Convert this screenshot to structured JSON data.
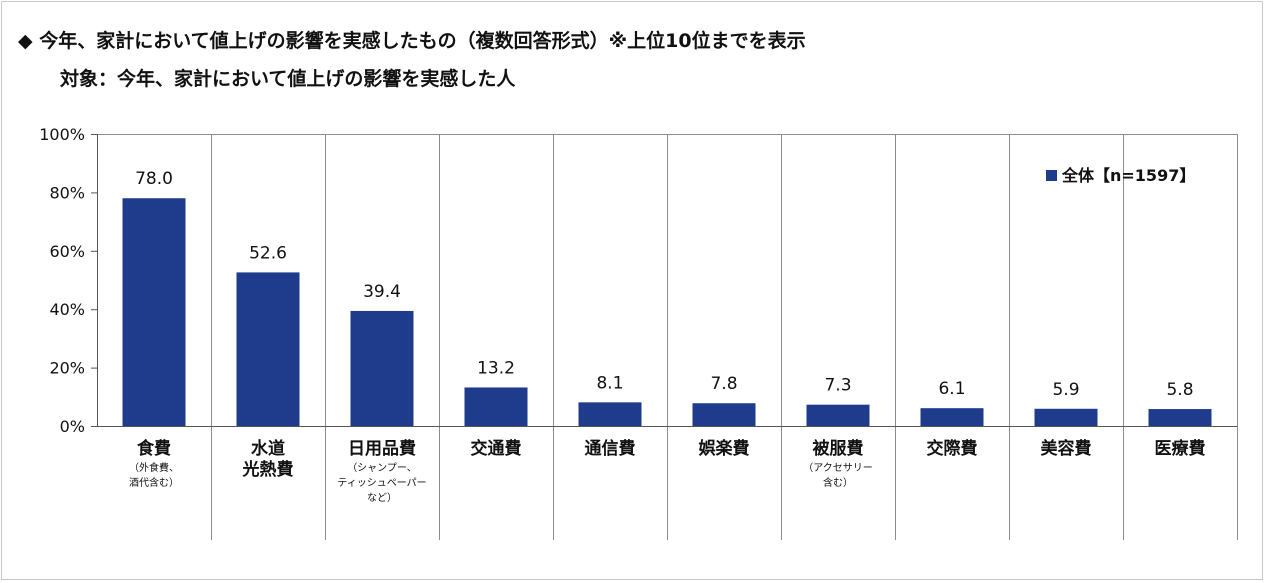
{
  "header": {
    "title": "◆ 今年、家計において値上げの影響を実感したもの（複数回答形式）※上位10位までを表示",
    "subtitle": "対象：今年、家計において値上げの影響を実感した人"
  },
  "chart_data": {
    "type": "bar",
    "categories": [
      {
        "lines": [
          "食費"
        ],
        "note": [
          "（外食費、",
          "酒代含む）"
        ]
      },
      {
        "lines": [
          "水道",
          "光熱費"
        ],
        "note": []
      },
      {
        "lines": [
          "日用品費"
        ],
        "note": [
          "（シャンプー、",
          "ティッシュペーパー",
          "など）"
        ]
      },
      {
        "lines": [
          "交通費"
        ],
        "note": []
      },
      {
        "lines": [
          "通信費"
        ],
        "note": []
      },
      {
        "lines": [
          "娯楽費"
        ],
        "note": []
      },
      {
        "lines": [
          "被服費"
        ],
        "note": [
          "（アクセサリー",
          "含む）"
        ]
      },
      {
        "lines": [
          "交際費"
        ],
        "note": []
      },
      {
        "lines": [
          "美容費"
        ],
        "note": []
      },
      {
        "lines": [
          "医療費"
        ],
        "note": []
      }
    ],
    "series": [
      {
        "name": "全体【n=1597】",
        "values": [
          78.0,
          52.6,
          39.4,
          13.2,
          8.1,
          7.8,
          7.3,
          6.1,
          5.9,
          5.8
        ]
      }
    ],
    "value_labels": [
      "78.0",
      "52.6",
      "39.4",
      "13.2",
      "8.1",
      "7.8",
      "7.3",
      "6.1",
      "5.9",
      "5.8"
    ],
    "yticks": [
      0,
      20,
      40,
      60,
      80,
      100
    ],
    "ytick_labels": [
      "0%",
      "20%",
      "40%",
      "60%",
      "80%",
      "100%"
    ],
    "ylim": [
      0,
      100
    ],
    "legend": "top-right",
    "bar_color": "#1f3b8c"
  }
}
